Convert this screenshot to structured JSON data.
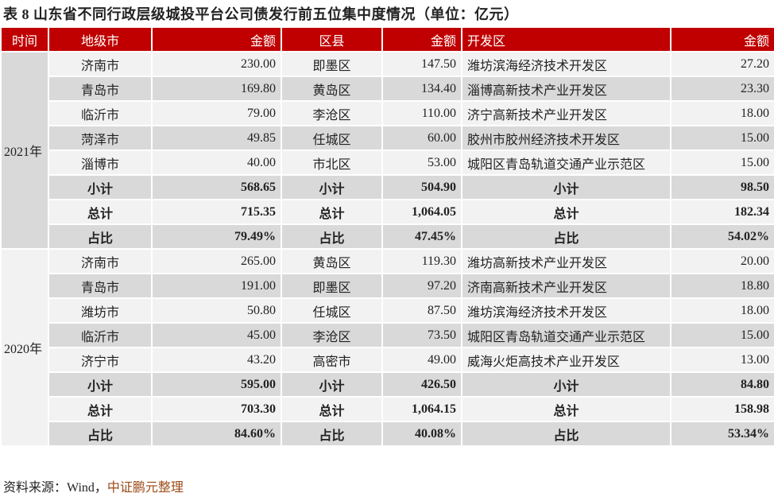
{
  "title": "表 8   山东省不同行政层级城投平台公司债发行前五位集中度情况（单位：亿元）",
  "headers": [
    "时间",
    "地级市",
    "金额",
    "区县",
    "金额",
    "开发区",
    "金额"
  ],
  "sections": [
    {
      "year": "2021年",
      "rows": [
        [
          "济南市",
          "230.00",
          "即墨区",
          "147.50",
          "潍坊滨海经济技术开发区",
          "27.20"
        ],
        [
          "青岛市",
          "169.80",
          "黄岛区",
          "134.40",
          "淄博高新技术产业开发区",
          "23.30"
        ],
        [
          "临沂市",
          "79.00",
          "李沧区",
          "110.00",
          "济宁高新技术产业开发区",
          "18.00"
        ],
        [
          "菏泽市",
          "49.85",
          "任城区",
          "60.00",
          "胶州市胶州经济技术开发区",
          "15.00"
        ],
        [
          "淄博市",
          "40.00",
          "市北区",
          "53.00",
          "城阳区青岛轨道交通产业示范区",
          "15.00"
        ]
      ],
      "summary": [
        [
          "小计",
          "568.65",
          "小计",
          "504.90",
          "小计",
          "98.50"
        ],
        [
          "总计",
          "715.35",
          "总计",
          "1,064.05",
          "总计",
          "182.34"
        ],
        [
          "占比",
          "79.49%",
          "占比",
          "47.45%",
          "占比",
          "54.02%"
        ]
      ]
    },
    {
      "year": "2020年",
      "rows": [
        [
          "济南市",
          "265.00",
          "黄岛区",
          "119.30",
          "潍坊高新技术产业开发区",
          "20.00"
        ],
        [
          "青岛市",
          "191.00",
          "即墨区",
          "97.20",
          "济南高新技术产业开发区",
          "18.80"
        ],
        [
          "潍坊市",
          "50.80",
          "任城区",
          "87.50",
          "潍坊滨海经济技术开发区",
          "18.00"
        ],
        [
          "临沂市",
          "45.00",
          "李沧区",
          "73.50",
          "城阳区青岛轨道交通产业示范区",
          "15.00"
        ],
        [
          "济宁市",
          "43.20",
          "高密市",
          "49.00",
          "威海火炬高技术产业开发区",
          "13.00"
        ]
      ],
      "summary": [
        [
          "小计",
          "595.00",
          "小计",
          "426.50",
          "小计",
          "84.80"
        ],
        [
          "总计",
          "703.30",
          "总计",
          "1,064.15",
          "总计",
          "158.98"
        ],
        [
          "占比",
          "84.60%",
          "占比",
          "40.08%",
          "占比",
          "53.34%"
        ]
      ]
    }
  ],
  "source": {
    "prefix": "资料来源：Wind，",
    "brand": "中证鹏元整理"
  },
  "colors": {
    "header_bg": "#c00000",
    "row_light": "#f2f2f2",
    "row_dark": "#d9d9d9",
    "brand": "#9c4a16"
  }
}
